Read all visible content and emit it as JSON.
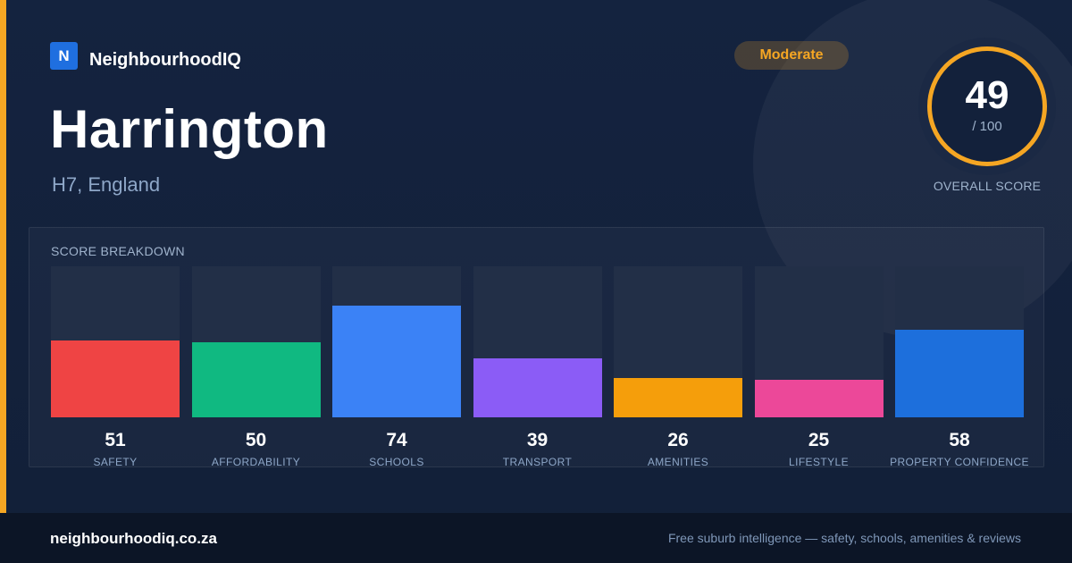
{
  "brand": {
    "logo_letter": "N",
    "name": "NeighbourhoodIQ"
  },
  "suburb": {
    "name": "Harrington",
    "location": "H7, England"
  },
  "rating_badge": "Moderate",
  "overall": {
    "score": "49",
    "denominator": "/ 100",
    "label": "OVERALL SCORE",
    "fraction": 0.49
  },
  "breakdown": {
    "title": "SCORE BREAKDOWN",
    "items": [
      {
        "label": "SAFETY",
        "value": 51,
        "color": "#ef4444"
      },
      {
        "label": "AFFORDABILITY",
        "value": 50,
        "color": "#10b981"
      },
      {
        "label": "SCHOOLS",
        "value": 74,
        "color": "#3b82f6"
      },
      {
        "label": "TRANSPORT",
        "value": 39,
        "color": "#8b5cf6"
      },
      {
        "label": "AMENITIES",
        "value": 26,
        "color": "#f59e0b"
      },
      {
        "label": "LIFESTYLE",
        "value": 25,
        "color": "#ec4899"
      },
      {
        "label": "PROPERTY CONFIDENCE",
        "value": 58,
        "color": "#1d6fdc"
      }
    ]
  },
  "footer": {
    "site": "neighbourhoodiq.co.za",
    "tagline": "Free suburb intelligence — safety, schools, amenities & reviews"
  },
  "colors": {
    "accent": "#f5a623",
    "background": "#13213b",
    "footer": "#0c1526"
  }
}
